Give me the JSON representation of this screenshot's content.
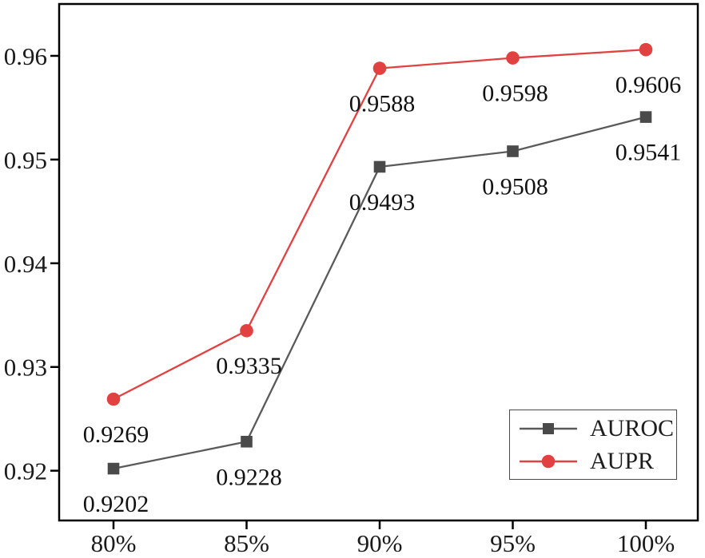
{
  "chart_data": {
    "type": "line",
    "title": "",
    "xlabel": "",
    "ylabel": "",
    "categories": [
      "80%",
      "85%",
      "90%",
      "95%",
      "100%"
    ],
    "series": [
      {
        "name": "AUROC",
        "values": [
          0.9202,
          0.9228,
          0.9493,
          0.9508,
          0.9541
        ],
        "point_labels": [
          "0.9202",
          "0.9228",
          "0.9493",
          "0.9508",
          "0.9541"
        ],
        "line_color": "#5a5a5a",
        "marker_color": "#4a4a4a",
        "marker": "square"
      },
      {
        "name": "AUPR",
        "values": [
          0.9269,
          0.9335,
          0.9588,
          0.9598,
          0.9606
        ],
        "point_labels": [
          "0.9269",
          "0.9335",
          "0.9588",
          "0.9598",
          "0.9606"
        ],
        "line_color": "#e14140",
        "marker_color": "#e14140",
        "marker": "circle"
      }
    ],
    "yticks": [
      0.92,
      0.93,
      0.94,
      0.95,
      0.96
    ],
    "ytick_labels": [
      "0.92",
      "0.93",
      "0.94",
      "0.95",
      "0.96"
    ],
    "ylim": [
      0.9152,
      0.965
    ],
    "grid": false,
    "legend_position": "bottom-right",
    "axis_color": "#000000",
    "text_color": "#1a1a1a"
  }
}
